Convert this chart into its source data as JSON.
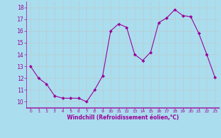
{
  "x": [
    0,
    1,
    2,
    3,
    4,
    5,
    6,
    7,
    8,
    9,
    10,
    11,
    12,
    13,
    14,
    15,
    16,
    17,
    18,
    19,
    20,
    21,
    22,
    23
  ],
  "y": [
    13.0,
    12.0,
    11.5,
    10.5,
    10.3,
    10.3,
    10.3,
    10.0,
    11.0,
    12.2,
    16.0,
    16.6,
    16.3,
    14.0,
    13.5,
    14.2,
    16.7,
    17.1,
    17.8,
    17.3,
    17.2,
    15.8,
    14.0,
    12.1
  ],
  "line_color": "#990099",
  "marker": "D",
  "marker_size": 2,
  "bg_color": "#aaddee",
  "grid_color": "#bbcccc",
  "xlabel": "Windchill (Refroidissement éolien,°C)",
  "xlabel_color": "#990099",
  "tick_color": "#990099",
  "ylim": [
    9.5,
    18.5
  ],
  "xlim": [
    -0.5,
    23.5
  ],
  "yticks": [
    10,
    11,
    12,
    13,
    14,
    15,
    16,
    17,
    18
  ],
  "xticks": [
    0,
    1,
    2,
    3,
    4,
    5,
    6,
    7,
    8,
    9,
    10,
    11,
    12,
    13,
    14,
    15,
    16,
    17,
    18,
    19,
    20,
    21,
    22,
    23
  ]
}
